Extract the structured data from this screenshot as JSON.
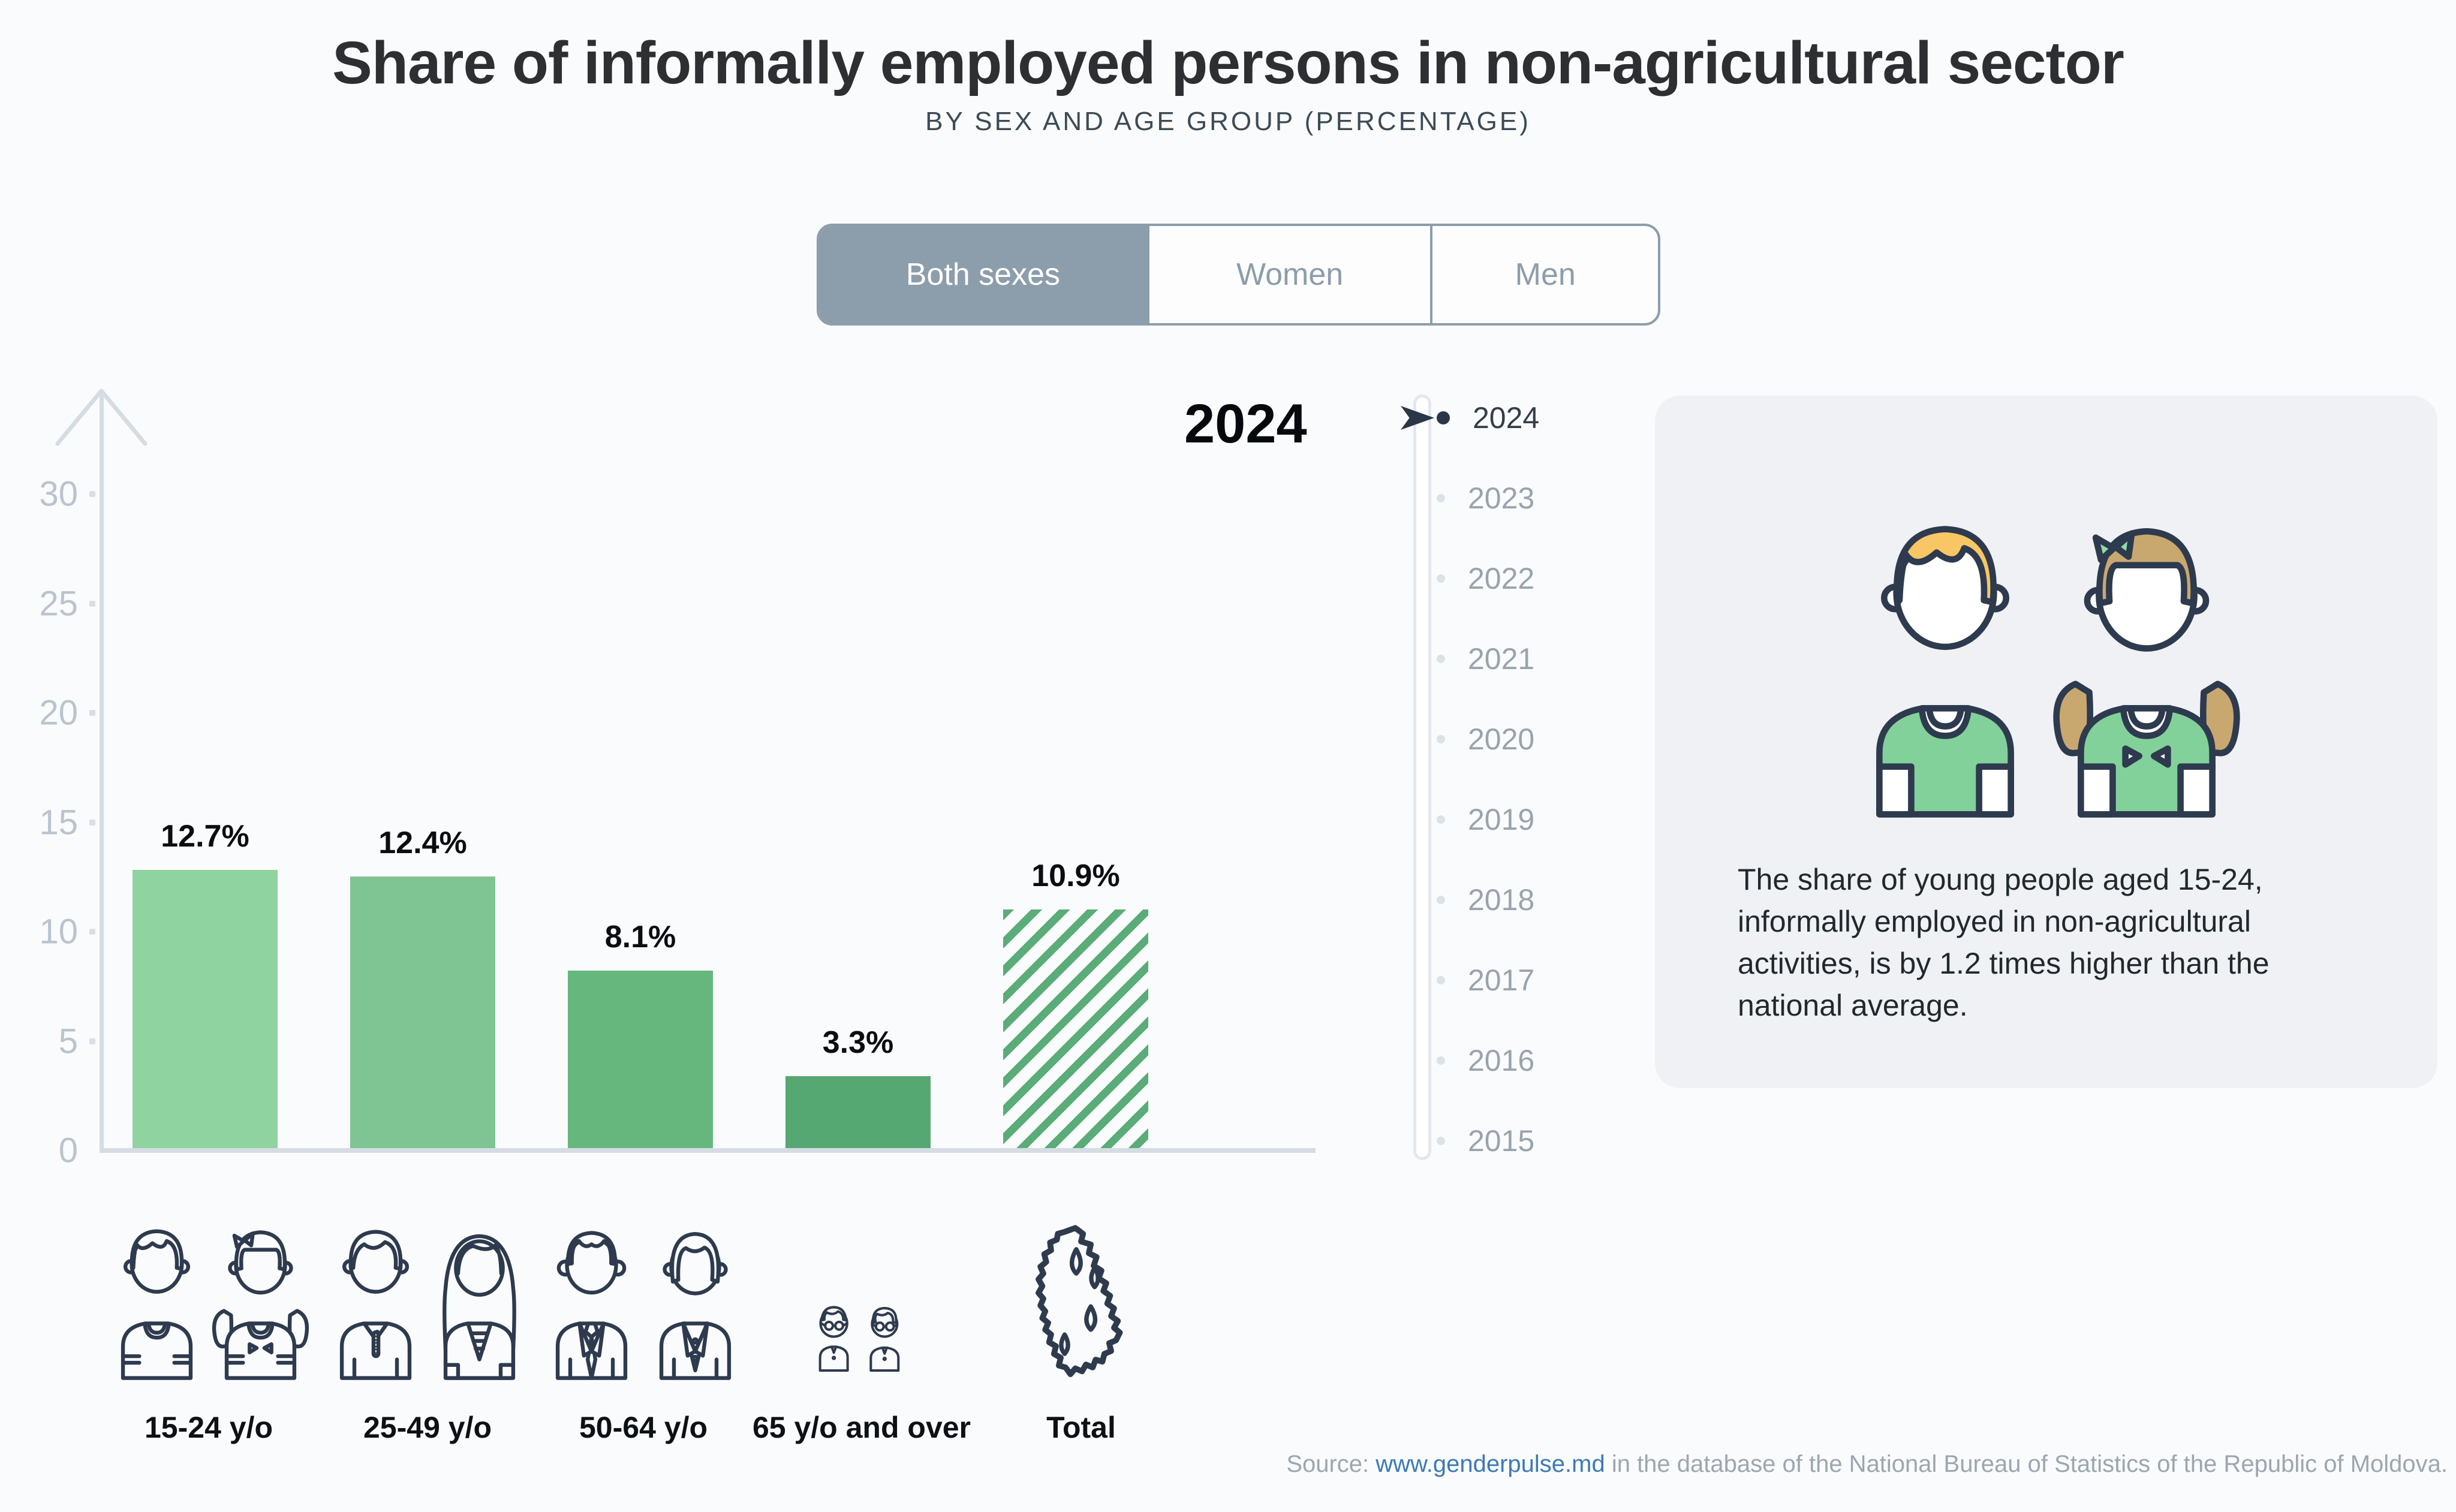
{
  "header": {
    "title": "Share of informally employed persons in non-agricultural sector",
    "subtitle": "BY SEX AND AGE GROUP (PERCENTAGE)"
  },
  "sex_toggle": {
    "options": [
      {
        "label": "Both sexes",
        "selected": true
      },
      {
        "label": "Women",
        "selected": false
      },
      {
        "label": "Men",
        "selected": false
      }
    ]
  },
  "chart_data": {
    "type": "bar",
    "title": "Share of informally employed persons in non-agricultural sector",
    "subtitle": "By sex and age group (percentage)",
    "sex_filter": "Both sexes",
    "year": "2024",
    "categories": [
      "15-24 y/o",
      "25-49 y/o",
      "50-64 y/o",
      "65 y/o and over",
      "Total"
    ],
    "values": [
      12.7,
      12.4,
      8.1,
      3.3,
      10.9
    ],
    "value_labels": [
      "12.7%",
      "12.4%",
      "8.1%",
      "3.3%",
      "10.9%"
    ],
    "ylim": [
      0,
      30
    ],
    "yticks": [
      0,
      5,
      10,
      15,
      20,
      25,
      30
    ],
    "grid": false,
    "legend": false,
    "bar_styles": [
      "solid",
      "solid",
      "solid",
      "solid",
      "hatched"
    ],
    "bar_colors": [
      "#8fd3a0",
      "#7fc493",
      "#66b77e",
      "#56a872",
      "#5aac78"
    ]
  },
  "timeline": {
    "selected_year": "2024",
    "years": [
      "2024",
      "2023",
      "2022",
      "2021",
      "2020",
      "2019",
      "2018",
      "2017",
      "2016",
      "2015"
    ]
  },
  "info_card": {
    "text": "The share of young people aged 15-24, informally employed in non-agricultural activities, is by 1.2 times higher than the national average."
  },
  "source": {
    "label": "Source: ",
    "link_text": "www.genderpulse.md",
    "rest": " in the database of the National Bureau of Statistics of the Republic of Moldova."
  },
  "colors": {
    "background": "#fafbfc",
    "toggle_blue_gray": "#8c9dab",
    "axis_gray": "#d6dce3",
    "axis_label_gray": "#bac4ce",
    "outline_navy": "#2e3a4e",
    "link_blue": "#3d7ab5",
    "card_background": "#eff1f4",
    "green_light": "#8fd3a0",
    "green_dark": "#56a872",
    "hair_blond": "#f8c664",
    "hair_brown": "#c9a870",
    "shirt_green": "#82d19a"
  }
}
